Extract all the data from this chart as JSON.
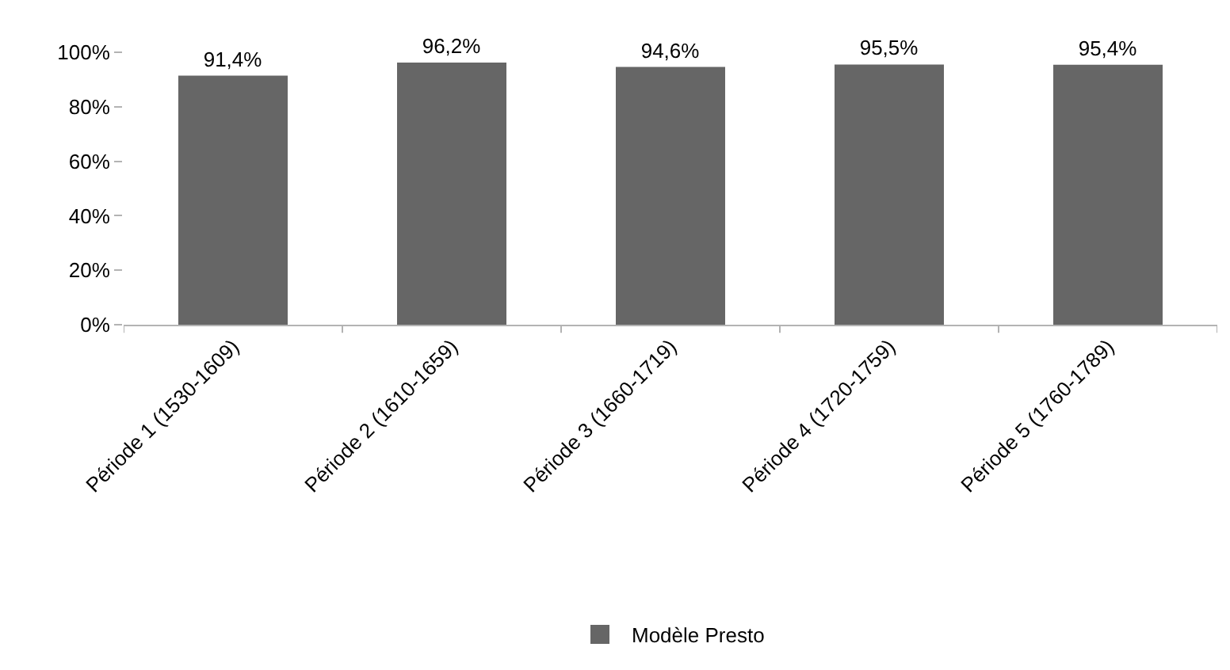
{
  "chart_data": {
    "type": "bar",
    "categories": [
      "Période 1 (1530-1609)",
      "Période 2 (1610-1659)",
      "Période 3 (1660-1719)",
      "Période 4 (1720-1759)",
      "Période 5 (1760-1789)"
    ],
    "series": [
      {
        "name": "Modèle Presto",
        "color": "#666666",
        "values": [
          91.4,
          96.2,
          94.6,
          95.5,
          95.4
        ],
        "value_labels": [
          "91,4%",
          "96,2%",
          "94,6%",
          "95,5%",
          "95,4%"
        ]
      }
    ],
    "ylim": [
      0,
      100
    ],
    "yticks": [
      {
        "value": 0,
        "label": "0%"
      },
      {
        "value": 20,
        "label": "20%"
      },
      {
        "value": 40,
        "label": "40%"
      },
      {
        "value": 60,
        "label": "60%"
      },
      {
        "value": 80,
        "label": "80%"
      },
      {
        "value": 100,
        "label": "100%"
      }
    ],
    "grid": false,
    "legend": "bottom"
  }
}
